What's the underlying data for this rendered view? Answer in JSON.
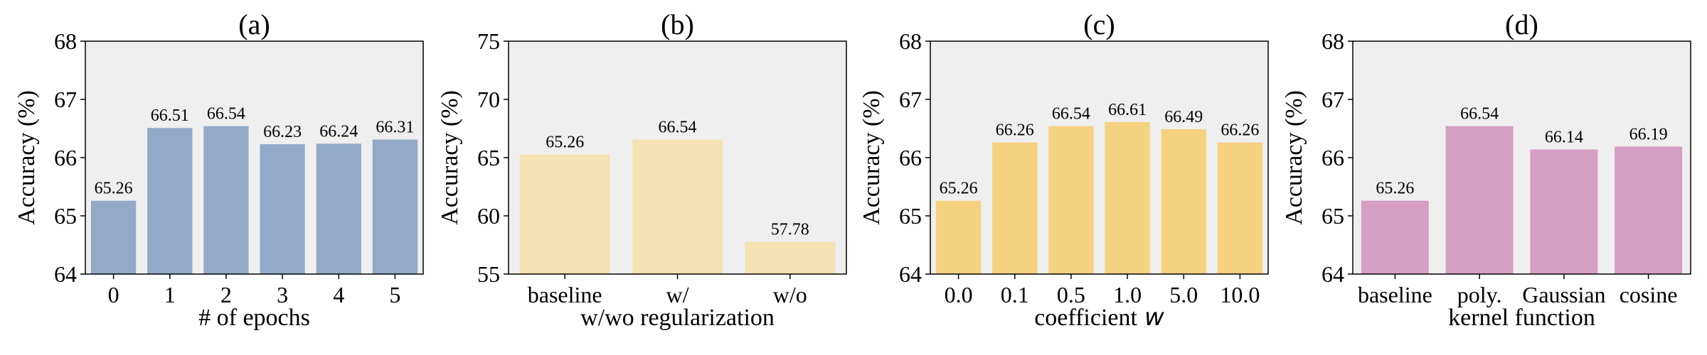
{
  "chart_data": [
    {
      "type": "bar",
      "title": "(a)",
      "xlabel": "# of epochs",
      "ylabel": "Accuracy (%)",
      "categories": [
        "0",
        "1",
        "2",
        "3",
        "4",
        "5"
      ],
      "values": [
        65.26,
        66.51,
        66.54,
        66.23,
        66.24,
        66.31
      ],
      "value_labels": [
        "65.26",
        "66.51",
        "66.54",
        "66.23",
        "66.24",
        "66.31"
      ],
      "ylim": [
        64,
        68
      ],
      "yticks": [
        "64",
        "65",
        "66",
        "67",
        "68"
      ],
      "bar_color": "#92aac7"
    },
    {
      "type": "bar",
      "title": "(b)",
      "xlabel": "w/wo regularization",
      "ylabel": "Accuracy (%)",
      "categories": [
        "baseline",
        "w/",
        "w/o"
      ],
      "values": [
        65.26,
        66.54,
        57.78
      ],
      "value_labels": [
        "65.26",
        "66.54",
        "57.78"
      ],
      "ylim": [
        55,
        75
      ],
      "yticks": [
        "55",
        "60",
        "65",
        "70",
        "75"
      ],
      "bar_color": "#f5e2b2"
    },
    {
      "type": "bar",
      "title": "(c)",
      "xlabel": "coefficient",
      "xlabel_symbol": "w",
      "ylabel": "Accuracy (%)",
      "categories": [
        "0.0",
        "0.1",
        "0.5",
        "1.0",
        "5.0",
        "10.0"
      ],
      "values": [
        65.26,
        66.26,
        66.54,
        66.61,
        66.49,
        66.26
      ],
      "value_labels": [
        "65.26",
        "66.26",
        "66.54",
        "66.61",
        "66.49",
        "66.26"
      ],
      "ylim": [
        64,
        68
      ],
      "yticks": [
        "64",
        "65",
        "66",
        "67",
        "68"
      ],
      "bar_color": "#f5d27f"
    },
    {
      "type": "bar",
      "title": "(d)",
      "xlabel": "kernel function",
      "ylabel": "Accuracy (%)",
      "categories": [
        "baseline",
        "poly.",
        "Gaussian",
        "cosine"
      ],
      "values": [
        65.26,
        66.54,
        66.14,
        66.19
      ],
      "value_labels": [
        "65.26",
        "66.54",
        "66.14",
        "66.19"
      ],
      "ylim": [
        64,
        68
      ],
      "yticks": [
        "64",
        "65",
        "66",
        "67",
        "68"
      ],
      "bar_color": "#d59fc3"
    }
  ],
  "colors": {
    "plot_background": "#efefef",
    "axis": "#000000",
    "text": "#000000"
  }
}
